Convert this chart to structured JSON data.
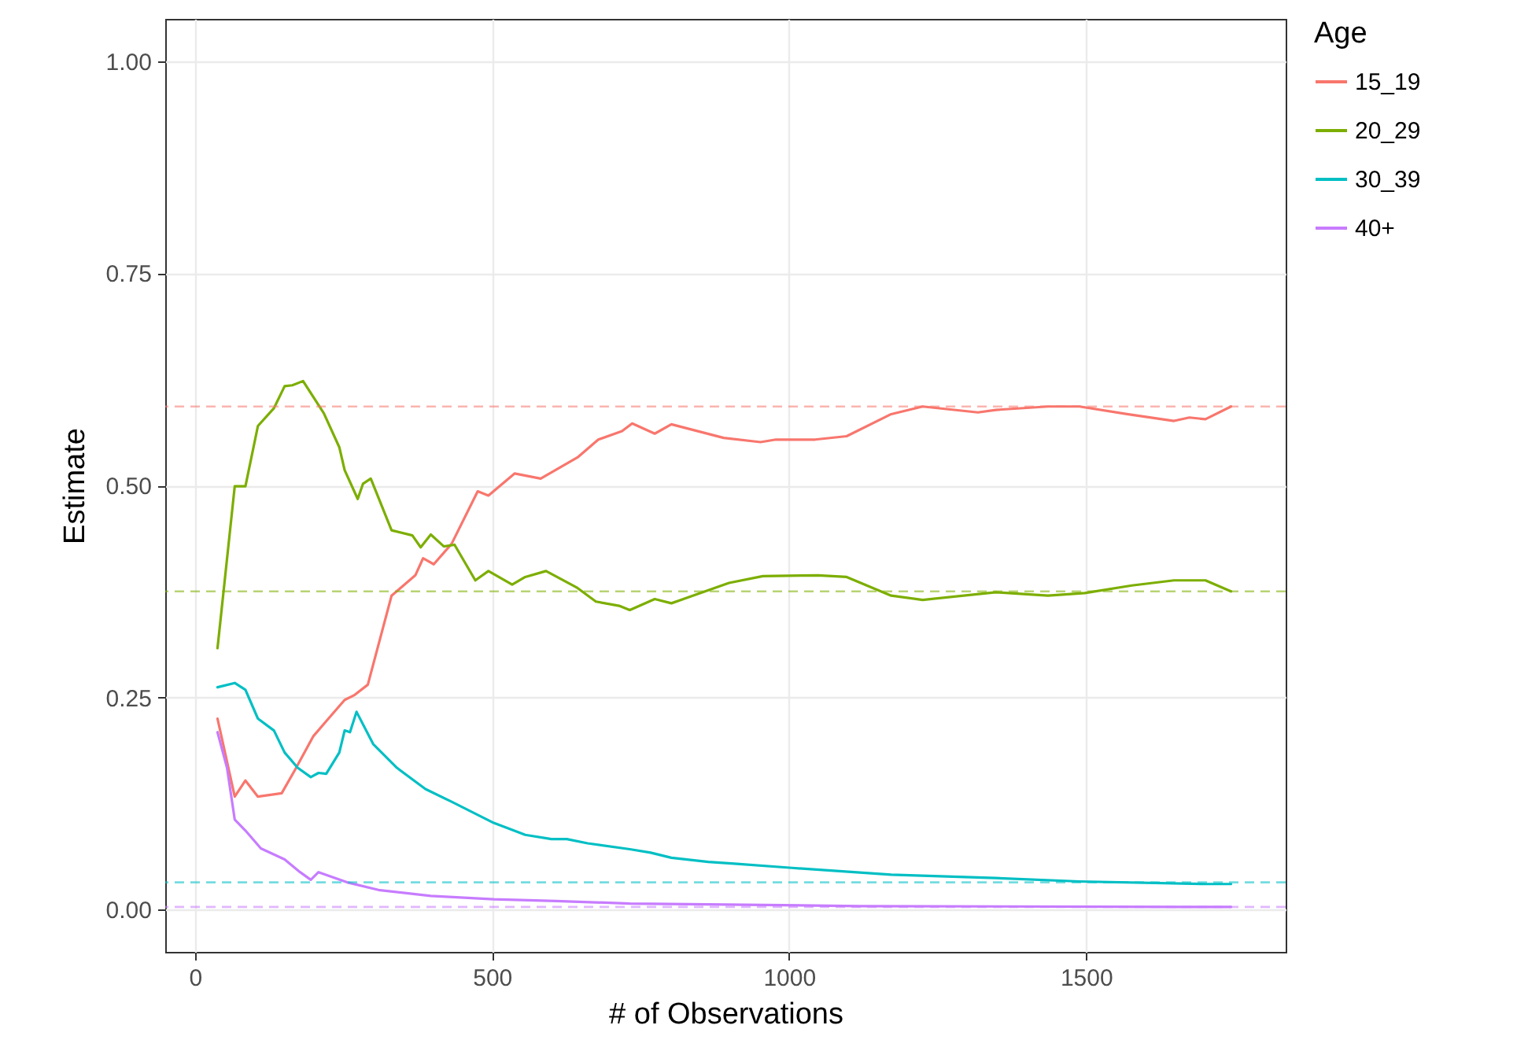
{
  "chart_data": {
    "type": "line",
    "xlabel": "# of Observations",
    "ylabel": "Estimate",
    "legend_title": "Age",
    "xlim": [
      -50,
      1836
    ],
    "ylim": [
      -0.05,
      1.05
    ],
    "xticks": [
      0,
      500,
      1000,
      1500
    ],
    "yticks": [
      {
        "value": 0,
        "label": "0.00"
      },
      {
        "value": 0.25,
        "label": "0.25"
      },
      {
        "value": 0.5,
        "label": "0.50"
      },
      {
        "value": 0.75,
        "label": "0.75"
      },
      {
        "value": 1,
        "label": "1.00"
      }
    ],
    "grid": true,
    "legend": "right",
    "line_style": "solid",
    "marker": "none",
    "series": [
      {
        "name": "15_19",
        "color": "#f8766d",
        "x": [
          38,
          67,
          85,
          106,
          146,
          168,
          199,
          221,
          252,
          269,
          291,
          331,
          371,
          384,
          402,
          432,
          476,
          494,
          538,
          582,
          644,
          679,
          719,
          736,
          774,
          802,
          890,
          952,
          978,
          1044,
          1097,
          1172,
          1225,
          1318,
          1348,
          1436,
          1489,
          1569,
          1648,
          1674,
          1701,
          1744
        ],
        "values": [
          0.225,
          0.133,
          0.152,
          0.133,
          0.137,
          0.164,
          0.204,
          0.222,
          0.247,
          0.253,
          0.265,
          0.37,
          0.394,
          0.414,
          0.407,
          0.431,
          0.493,
          0.488,
          0.514,
          0.508,
          0.533,
          0.554,
          0.564,
          0.573,
          0.561,
          0.572,
          0.556,
          0.551,
          0.554,
          0.554,
          0.558,
          0.584,
          0.593,
          0.586,
          0.589,
          0.593,
          0.593,
          0.584,
          0.576,
          0.58,
          0.578,
          0.593
        ]
      },
      {
        "name": "20_29",
        "color": "#7cae00",
        "x": [
          38,
          67,
          85,
          106,
          133,
          151,
          164,
          182,
          217,
          243,
          252,
          274,
          283,
          296,
          331,
          366,
          380,
          397,
          419,
          437,
          472,
          494,
          534,
          556,
          591,
          644,
          675,
          714,
          732,
          774,
          802,
          899,
          956,
          1049,
          1097,
          1172,
          1225,
          1348,
          1436,
          1498,
          1577,
          1648,
          1701,
          1744
        ],
        "values": [
          0.308,
          0.499,
          0.499,
          0.57,
          0.591,
          0.617,
          0.618,
          0.623,
          0.585,
          0.545,
          0.518,
          0.484,
          0.502,
          0.508,
          0.447,
          0.441,
          0.427,
          0.442,
          0.428,
          0.43,
          0.388,
          0.399,
          0.383,
          0.392,
          0.399,
          0.379,
          0.363,
          0.358,
          0.353,
          0.366,
          0.361,
          0.385,
          0.393,
          0.394,
          0.392,
          0.37,
          0.365,
          0.374,
          0.37,
          0.373,
          0.382,
          0.388,
          0.388,
          0.375
        ]
      },
      {
        "name": "30_39",
        "color": "#00bfc4",
        "x": [
          38,
          67,
          85,
          106,
          133,
          151,
          173,
          195,
          208,
          221,
          243,
          252,
          261,
          272,
          300,
          340,
          388,
          432,
          503,
          556,
          600,
          626,
          661,
          732,
          767,
          802,
          864,
          908,
          1005,
          1172,
          1348,
          1489,
          1701,
          1744
        ],
        "values": [
          0.262,
          0.267,
          0.259,
          0.225,
          0.211,
          0.185,
          0.167,
          0.156,
          0.161,
          0.16,
          0.185,
          0.211,
          0.209,
          0.233,
          0.195,
          0.167,
          0.142,
          0.127,
          0.102,
          0.088,
          0.083,
          0.083,
          0.078,
          0.071,
          0.067,
          0.061,
          0.056,
          0.054,
          0.049,
          0.041,
          0.037,
          0.033,
          0.03,
          0.03
        ]
      },
      {
        "name": "40+",
        "color": "#c77cff",
        "x": [
          38,
          54,
          67,
          85,
          111,
          151,
          177,
          195,
          208,
          256,
          309,
          397,
          503,
          608,
          732,
          864,
          1119,
          1657,
          1744
        ],
        "values": [
          0.209,
          0.167,
          0.106,
          0.093,
          0.072,
          0.059,
          0.044,
          0.035,
          0.044,
          0.032,
          0.023,
          0.016,
          0.012,
          0.01,
          0.007,
          0.006,
          0.004,
          0.003,
          0.003
        ]
      }
    ],
    "ref_lines": [
      {
        "axis": "y",
        "value": 0.593,
        "color": "#f8766d",
        "line_style": "dashed"
      },
      {
        "axis": "y",
        "value": 0.375,
        "color": "#7cae00",
        "line_style": "dashed"
      },
      {
        "axis": "y",
        "value": 0.032,
        "color": "#00bfc4",
        "line_style": "dashed"
      },
      {
        "axis": "y",
        "value": 0.003,
        "color": "#c77cff",
        "line_style": "dashed"
      }
    ]
  }
}
